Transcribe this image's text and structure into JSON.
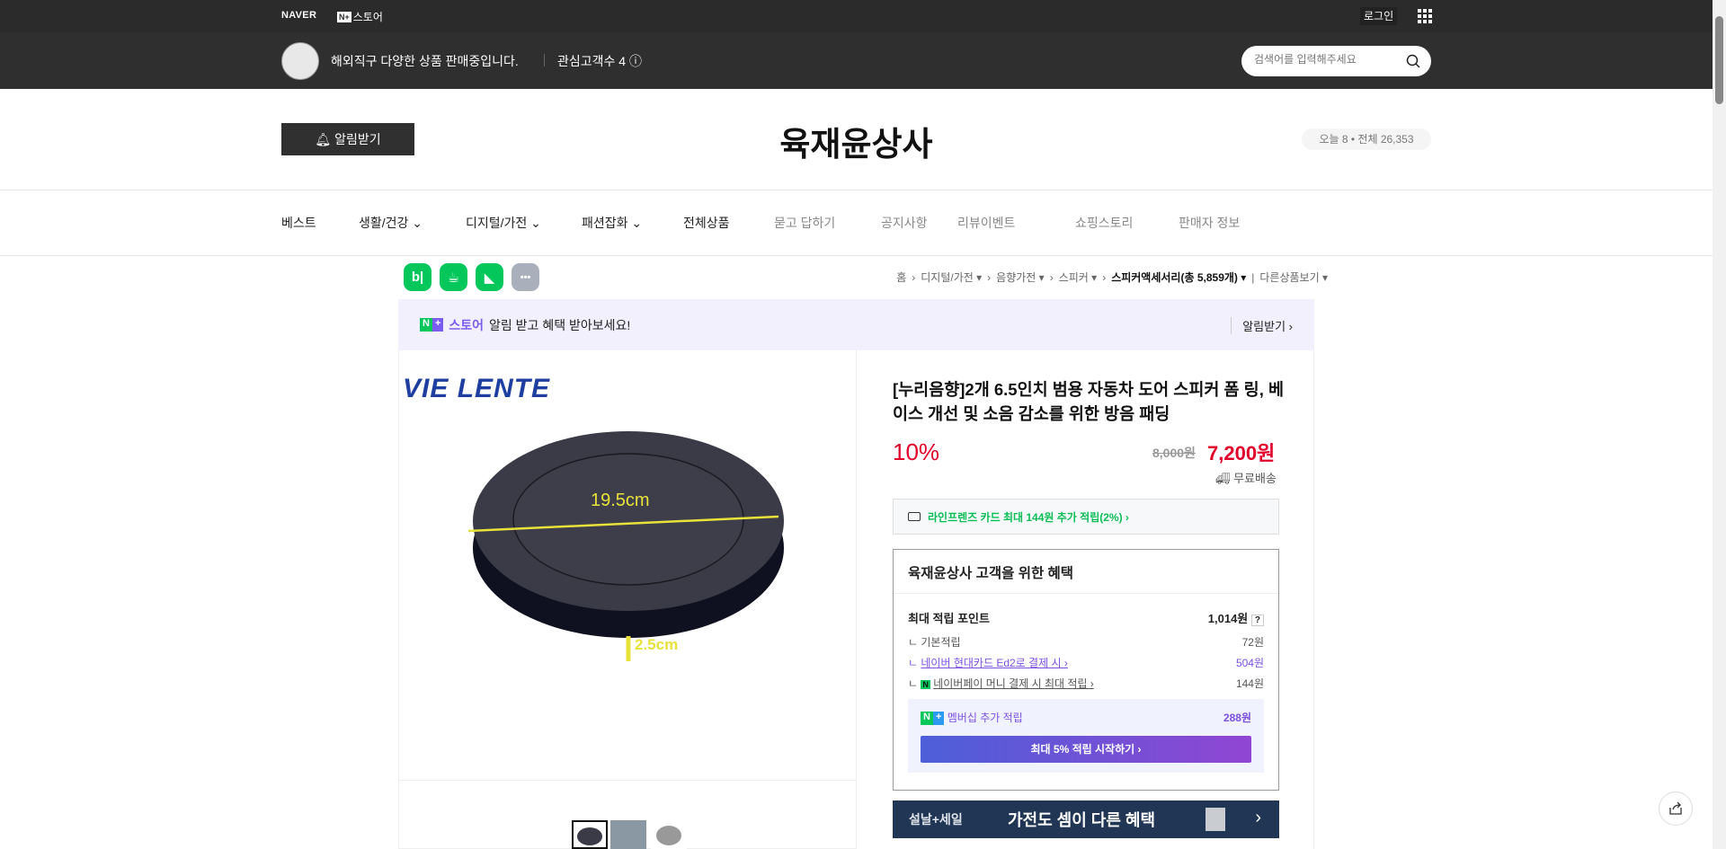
{
  "gnb": {
    "naver": "NAVER",
    "store_badge": "N+",
    "store_label": "스토어",
    "login": "로그인"
  },
  "seller": {
    "description": "해외직구 다양한 상품 판매중입니다.",
    "fans": "관심고객수 4",
    "search_placeholder": "검색어를 입력해주세요"
  },
  "store": {
    "alarm_label": "알림받기",
    "name": "육재윤상사",
    "visitors": "오늘 8 • 전체 26,353"
  },
  "nav": [
    {
      "label": "베스트"
    },
    {
      "label": "생활/건강 ⌄"
    },
    {
      "label": "디지털/가전 ⌄"
    },
    {
      "label": "패션잡화 ⌄"
    },
    {
      "label": "전체상품"
    },
    {
      "label": "묻고 답하기"
    },
    {
      "label": "공지사항"
    },
    {
      "label": "리뷰이벤트"
    },
    {
      "label": "쇼핑스토리"
    },
    {
      "label": "판매자 정보"
    }
  ],
  "sns": [
    {
      "label": "b|",
      "icon": "blog-icon"
    },
    {
      "label": "☕",
      "icon": "cafe-icon"
    },
    {
      "label": "◣",
      "icon": "bookmark-icon"
    },
    {
      "label": "•••",
      "icon": "more-icon"
    }
  ],
  "breadcrumb": {
    "items": [
      "홈",
      "디지털/가전 ▾",
      "음향가전 ▾",
      "스피커 ▾"
    ],
    "current": "스피커액세서리(총 5,859개) ▾",
    "other": "다른상품보기 ▾"
  },
  "banner": {
    "badge_n": "N",
    "badge_plus": "+",
    "store": "스토어",
    "text": "알림 받고 혜택 받아보세요!",
    "action": "알림받기 ›"
  },
  "image": {
    "brand": "VIE LENTE",
    "dim1": "19.5cm",
    "dim2": "2.5cm"
  },
  "product": {
    "title": "[누리음향]2개 6.5인치 범용 자동차 도어 스피커 폼 링, 베이스 개선 및 소음 감소를 위한 방음 패딩",
    "discount": "10%",
    "original_price": "8,000원",
    "price": "7,200원",
    "shipping": "무료배송",
    "card_benefit": "라인프렌즈 카드 최대 144원 추가 적립(2%) ›"
  },
  "benefit": {
    "title": "육재윤상사 고객을 위한 혜택",
    "max_label": "최대 적립 포인트",
    "max_value": "1,014원",
    "help": "?",
    "rows": [
      {
        "label": "기본적립",
        "value": "72원"
      },
      {
        "label": "네이버 현대카드 Ed2로 결제 시 ›",
        "value": "504원"
      },
      {
        "label": "네이버페이 머니 결제 시 최대 적립 ›",
        "value": "144원"
      }
    ],
    "membership_label": "멤버십 추가 적립",
    "membership_value": "288원",
    "cta": "최대 5% 적립 시작하기 ›"
  },
  "sale_banner": {
    "tag": "설날+세일",
    "text": "가전도 셈이 다른 혜택",
    "arrow": "›"
  },
  "colors": {
    "accent_red": "#e0002a",
    "naver_green": "#03c75a",
    "topbar": "#2f2f2f",
    "sale_navy": "#213654"
  }
}
